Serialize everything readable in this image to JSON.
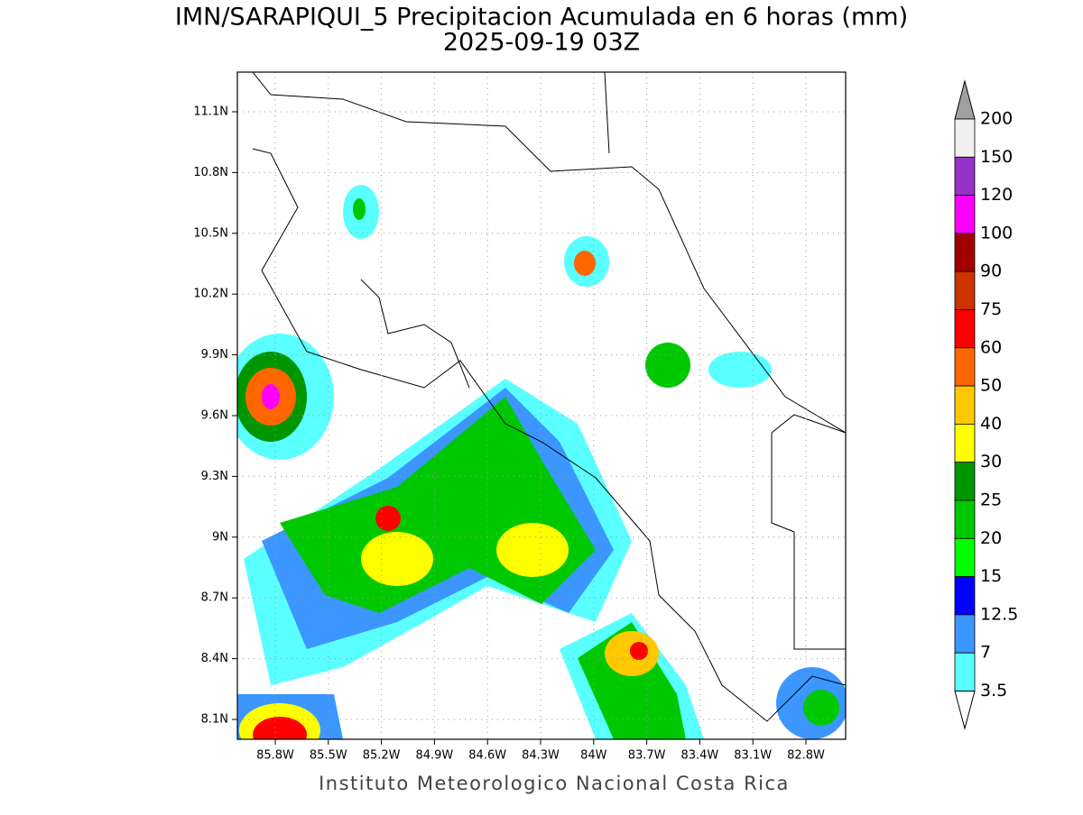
{
  "title": "IMN/SARAPIQUI_5 Precipitacion Acumulada en 6 horas (mm)",
  "subtitle": "2025-09-19 03Z",
  "lat_ticks": [
    {
      "value": 11.1,
      "label": "11.1N"
    },
    {
      "value": 10.8,
      "label": "10.8N"
    },
    {
      "value": 10.5,
      "label": "10.5N"
    },
    {
      "value": 10.2,
      "label": "10.2N"
    },
    {
      "value": 9.9,
      "label": "9.9N"
    },
    {
      "value": 9.6,
      "label": "9.6N"
    },
    {
      "value": 9.3,
      "label": "9.3N"
    },
    {
      "value": 9,
      "label": "9N"
    },
    {
      "value": 8.7,
      "label": "8.7N"
    },
    {
      "value": 8.4,
      "label": "8.4N"
    },
    {
      "value": 8.1,
      "label": "8.1N"
    }
  ],
  "lon_ticks": [
    {
      "value": -85.8,
      "label": "85.8W"
    },
    {
      "value": -85.5,
      "label": "85.5W"
    },
    {
      "value": -85.2,
      "label": "85.2W"
    },
    {
      "value": -84.9,
      "label": "84.9W"
    },
    {
      "value": -84.6,
      "label": "84.6W"
    },
    {
      "value": -84.3,
      "label": "84.3W"
    },
    {
      "value": -84,
      "label": "84W"
    },
    {
      "value": -83.7,
      "label": "83.7W"
    },
    {
      "value": -83.4,
      "label": "83.4W"
    },
    {
      "value": -83.1,
      "label": "83.1W"
    },
    {
      "value": -82.8,
      "label": "82.8W"
    }
  ],
  "colorbar": {
    "levels": [
      "200",
      "150",
      "120",
      "100",
      "90",
      "75",
      "60",
      "50",
      "40",
      "30",
      "25",
      "20",
      "15",
      "12.5",
      "7",
      "3.5"
    ],
    "colors": [
      "#a0a0a0",
      "#f0f0f0",
      "#9632c8",
      "#ff00ff",
      "#a00000",
      "#cc3300",
      "#ff0000",
      "#ff6600",
      "#ffc800",
      "#ffff00",
      "#009600",
      "#00c800",
      "#00ff00",
      "#0000ff",
      "#3c96ff",
      "#5affff",
      "#ffffff"
    ]
  },
  "footer": "Instituto Meteorologico Nacional Costa Rica"
}
